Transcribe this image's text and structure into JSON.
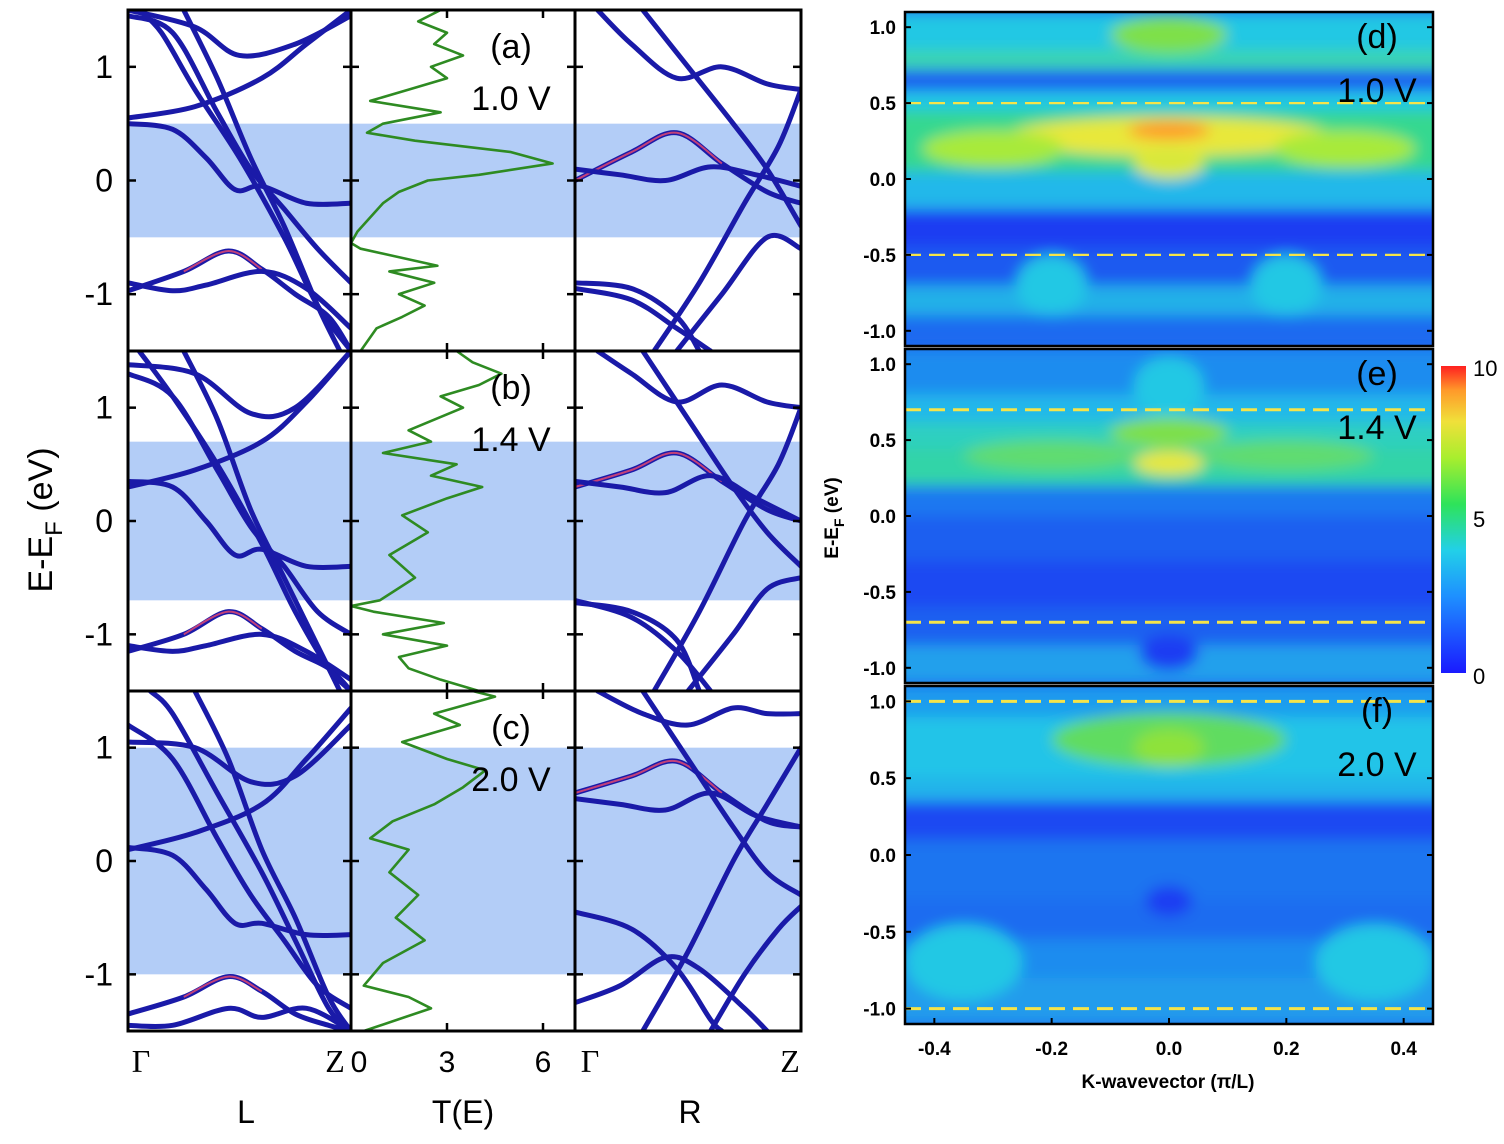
{
  "chart_data": [
    {
      "type": "line",
      "panel": "band-structure",
      "ylabel_main": "E-E",
      "ylabel_sub": "F",
      "ylabel_unit": "(eV)",
      "ylim": [
        -1.5,
        1.5
      ],
      "yticks": [
        "1",
        "0",
        "-1"
      ],
      "column_labels": {
        "left": "L",
        "middle": "T(E)",
        "right": "R"
      },
      "k_ticks": {
        "start": "Γ",
        "end": "Z"
      },
      "transmission_xlim": [
        0,
        7
      ],
      "transmission_xticks": [
        "0",
        "3",
        "6"
      ],
      "rows": [
        {
          "label": "(a)",
          "bias": "1.0 V",
          "window": [
            -0.5,
            0.5
          ],
          "transmission": [
            [
              0.3,
              -1.5
            ],
            [
              0.8,
              -1.3
            ],
            [
              1.6,
              -1.2
            ],
            [
              2.3,
              -1.1
            ],
            [
              1.5,
              -1.0
            ],
            [
              2.6,
              -0.9
            ],
            [
              1.2,
              -0.8
            ],
            [
              2.7,
              -0.75
            ],
            [
              0.3,
              -0.6
            ],
            [
              0.0,
              -0.55
            ],
            [
              0.2,
              -0.45
            ],
            [
              1.0,
              -0.2
            ],
            [
              1.5,
              -0.1
            ],
            [
              2.4,
              0.0
            ],
            [
              4.0,
              0.05
            ],
            [
              6.3,
              0.15
            ],
            [
              5.0,
              0.25
            ],
            [
              2.0,
              0.35
            ],
            [
              0.5,
              0.42
            ],
            [
              1.0,
              0.5
            ],
            [
              2.8,
              0.6
            ],
            [
              0.6,
              0.7
            ],
            [
              1.8,
              0.8
            ],
            [
              3.0,
              0.9
            ],
            [
              2.5,
              1.0
            ],
            [
              3.5,
              1.1
            ],
            [
              2.6,
              1.2
            ],
            [
              3.0,
              1.3
            ],
            [
              2.1,
              1.4
            ],
            [
              2.8,
              1.5
            ]
          ]
        },
        {
          "label": "(b)",
          "bias": "1.4 V",
          "window": [
            -0.7,
            0.7
          ],
          "transmission": [
            [
              4.0,
              -1.5
            ],
            [
              2.8,
              -1.4
            ],
            [
              1.8,
              -1.3
            ],
            [
              1.5,
              -1.2
            ],
            [
              3.0,
              -1.1
            ],
            [
              1.0,
              -1.0
            ],
            [
              2.9,
              -0.9
            ],
            [
              0.7,
              -0.8
            ],
            [
              0.0,
              -0.75
            ],
            [
              0.9,
              -0.7
            ],
            [
              2.0,
              -0.5
            ],
            [
              1.2,
              -0.3
            ],
            [
              2.4,
              -0.1
            ],
            [
              1.6,
              0.05
            ],
            [
              3.0,
              0.2
            ],
            [
              4.1,
              0.3
            ],
            [
              2.5,
              0.4
            ],
            [
              3.3,
              0.5
            ],
            [
              1.0,
              0.6
            ],
            [
              2.5,
              0.7
            ],
            [
              1.8,
              0.8
            ],
            [
              3.5,
              1.0
            ],
            [
              2.8,
              1.1
            ],
            [
              4.0,
              1.2
            ],
            [
              4.7,
              1.3
            ],
            [
              3.8,
              1.4
            ],
            [
              3.3,
              1.5
            ]
          ]
        },
        {
          "label": "(c)",
          "bias": "2.0 V",
          "window": [
            -1.0,
            1.0
          ],
          "transmission": [
            [
              0.4,
              -1.5
            ],
            [
              2.5,
              -1.3
            ],
            [
              1.8,
              -1.2
            ],
            [
              0.4,
              -1.1
            ],
            [
              1.0,
              -0.9
            ],
            [
              2.3,
              -0.7
            ],
            [
              1.4,
              -0.5
            ],
            [
              2.1,
              -0.3
            ],
            [
              1.2,
              -0.1
            ],
            [
              1.8,
              0.1
            ],
            [
              0.6,
              0.2
            ],
            [
              1.3,
              0.35
            ],
            [
              2.6,
              0.5
            ],
            [
              3.5,
              0.65
            ],
            [
              4.2,
              0.8
            ],
            [
              3.0,
              0.9
            ],
            [
              1.6,
              1.05
            ],
            [
              3.4,
              1.2
            ],
            [
              2.6,
              1.3
            ],
            [
              4.5,
              1.45
            ],
            [
              3.8,
              1.5
            ]
          ]
        }
      ]
    },
    {
      "type": "heatmap",
      "panel": "k-resolved-transmission",
      "xlabel": "K-wavevector (π/L)",
      "ylabel_main": "E-E",
      "ylabel_sub": "F",
      "ylabel_unit": "(eV)",
      "xlim": [
        -0.45,
        0.45
      ],
      "ylim": [
        -1.1,
        1.1
      ],
      "xticks": [
        "-0.4",
        "-0.2",
        "0.0",
        "0.2",
        "0.4"
      ],
      "yticks": [
        "1.0",
        "0.5",
        "0.0",
        "-0.5",
        "-1.0"
      ],
      "colorbar": {
        "min": 0,
        "max": 10,
        "labels": [
          "10",
          "5",
          "0"
        ]
      },
      "rows": [
        {
          "label": "(d)",
          "bias": "1.0 V",
          "window": [
            -0.5,
            0.5
          ]
        },
        {
          "label": "(e)",
          "bias": "1.4 V",
          "window": [
            -0.7,
            0.7
          ]
        },
        {
          "label": "(f)",
          "bias": "2.0 V",
          "window": [
            -1.0,
            1.0
          ]
        }
      ]
    }
  ],
  "colors": {
    "band": "#1a1aa8",
    "band_highlight": "#c2407a",
    "transmission": "#2e8b22",
    "bias_window": "#b3cdf7",
    "dashed": "#f5e44a"
  }
}
